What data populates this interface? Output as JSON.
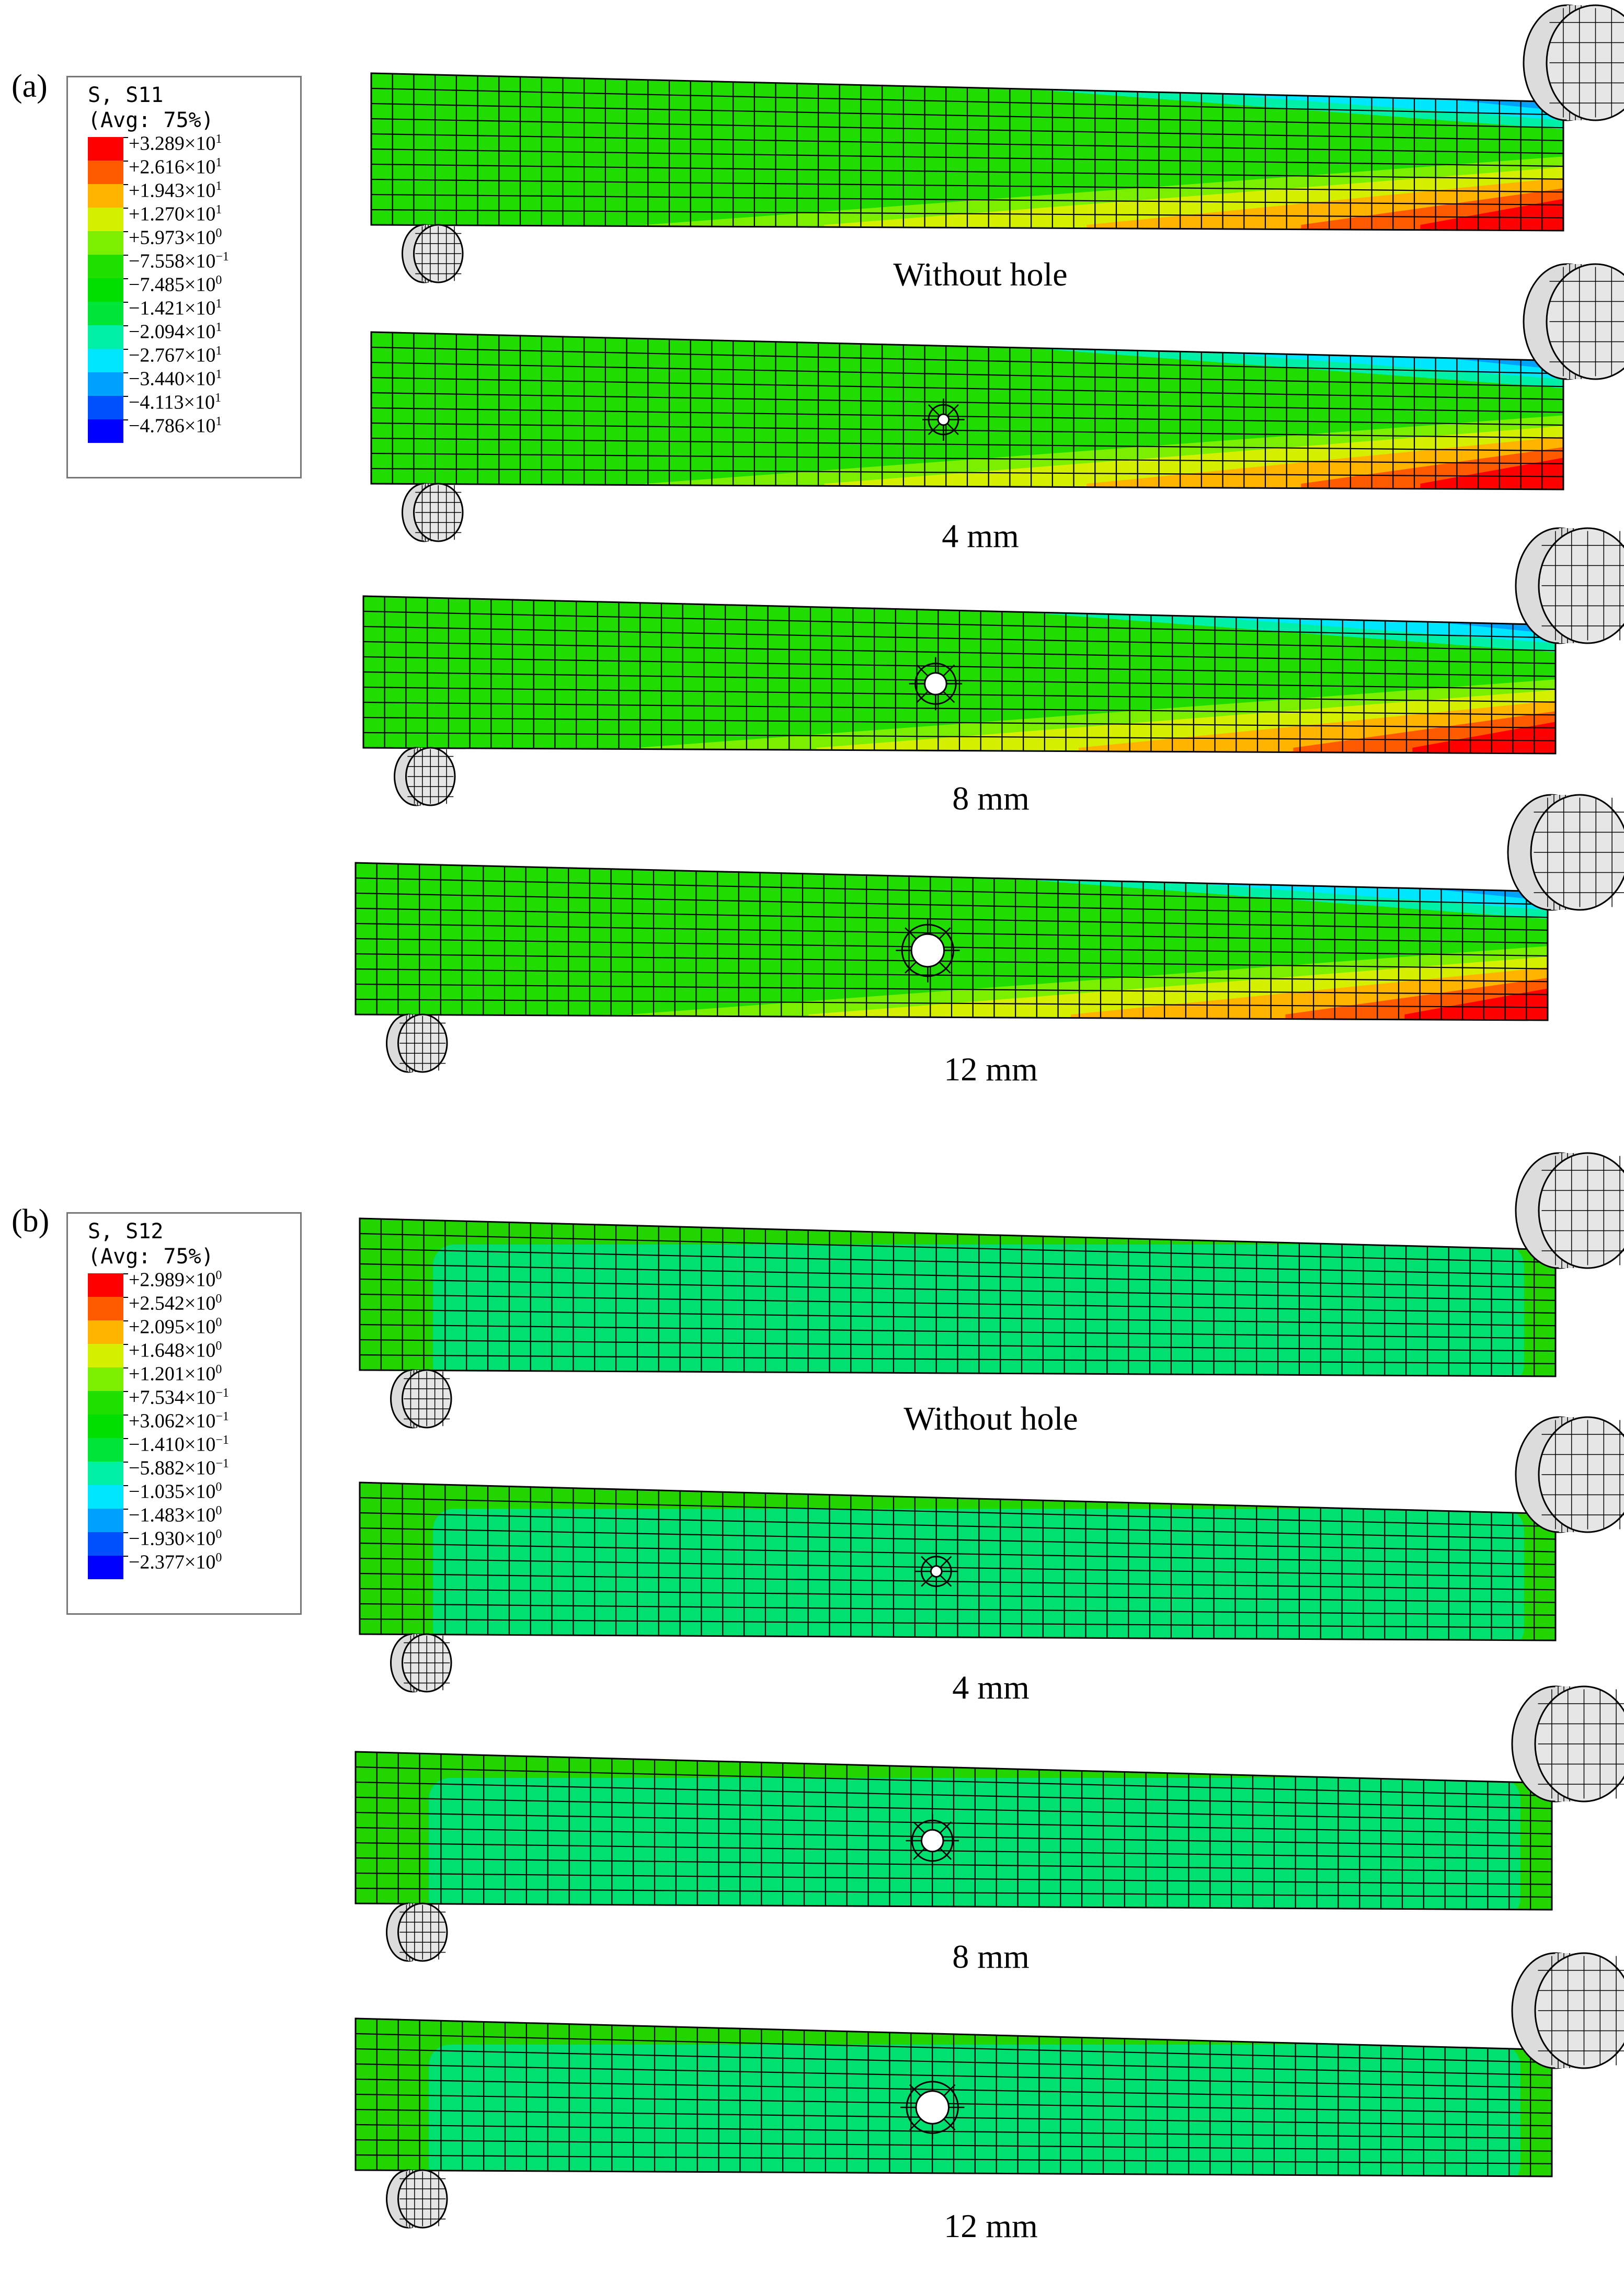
{
  "panels": [
    {
      "label": "(a)",
      "variable": "S, S11",
      "averaging": "(Avg: 75%)",
      "scale": {
        "colors": [
          "#ff0000",
          "#ff5a00",
          "#ffb400",
          "#d4f000",
          "#7af000",
          "#20e000",
          "#00e000",
          "#00e53a",
          "#00f0a8",
          "#00e6ff",
          "#00a0ff",
          "#0050ff",
          "#0000ff"
        ],
        "labels": [
          {
            "m": "+3.289",
            "e": "1"
          },
          {
            "m": "+2.616",
            "e": "1"
          },
          {
            "m": "+1.943",
            "e": "1"
          },
          {
            "m": "+1.270",
            "e": "1"
          },
          {
            "m": "+5.973",
            "e": "0"
          },
          {
            "m": "−7.558",
            "e": "−1"
          },
          {
            "m": "−7.485",
            "e": "0"
          },
          {
            "m": "−1.421",
            "e": "1"
          },
          {
            "m": "−2.094",
            "e": "1"
          },
          {
            "m": "−2.767",
            "e": "1"
          },
          {
            "m": "−3.440",
            "e": "1"
          },
          {
            "m": "−4.113",
            "e": "1"
          },
          {
            "m": "−4.786",
            "e": "1"
          }
        ]
      },
      "beams": [
        {
          "caption": "Without hole",
          "hole_mm": 0
        },
        {
          "caption": "4 mm",
          "hole_mm": 4
        },
        {
          "caption": "8 mm",
          "hole_mm": 8
        },
        {
          "caption": "12 mm",
          "hole_mm": 12
        }
      ]
    },
    {
      "label": "(b)",
      "variable": "S, S12",
      "averaging": "(Avg: 75%)",
      "scale": {
        "colors": [
          "#ff0000",
          "#ff5a00",
          "#ffb400",
          "#d4f000",
          "#7af000",
          "#20e000",
          "#00e000",
          "#00e53a",
          "#00f0a8",
          "#00e6ff",
          "#00a0ff",
          "#0050ff",
          "#0000ff"
        ],
        "labels": [
          {
            "m": "+2.989",
            "e": "0"
          },
          {
            "m": "+2.542",
            "e": "0"
          },
          {
            "m": "+2.095",
            "e": "0"
          },
          {
            "m": "+1.648",
            "e": "0"
          },
          {
            "m": "+1.201",
            "e": "0"
          },
          {
            "m": "+7.534",
            "e": "−1"
          },
          {
            "m": "+3.062",
            "e": "−1"
          },
          {
            "m": "−1.410",
            "e": "−1"
          },
          {
            "m": "−5.882",
            "e": "−1"
          },
          {
            "m": "−1.035",
            "e": "0"
          },
          {
            "m": "−1.483",
            "e": "0"
          },
          {
            "m": "−1.930",
            "e": "0"
          },
          {
            "m": "−2.377",
            "e": "0"
          }
        ]
      },
      "beams": [
        {
          "caption": "Without hole",
          "hole_mm": 0
        },
        {
          "caption": "4 mm",
          "hole_mm": 4
        },
        {
          "caption": "8 mm",
          "hole_mm": 8
        },
        {
          "caption": "12 mm",
          "hole_mm": 12
        }
      ]
    }
  ]
}
